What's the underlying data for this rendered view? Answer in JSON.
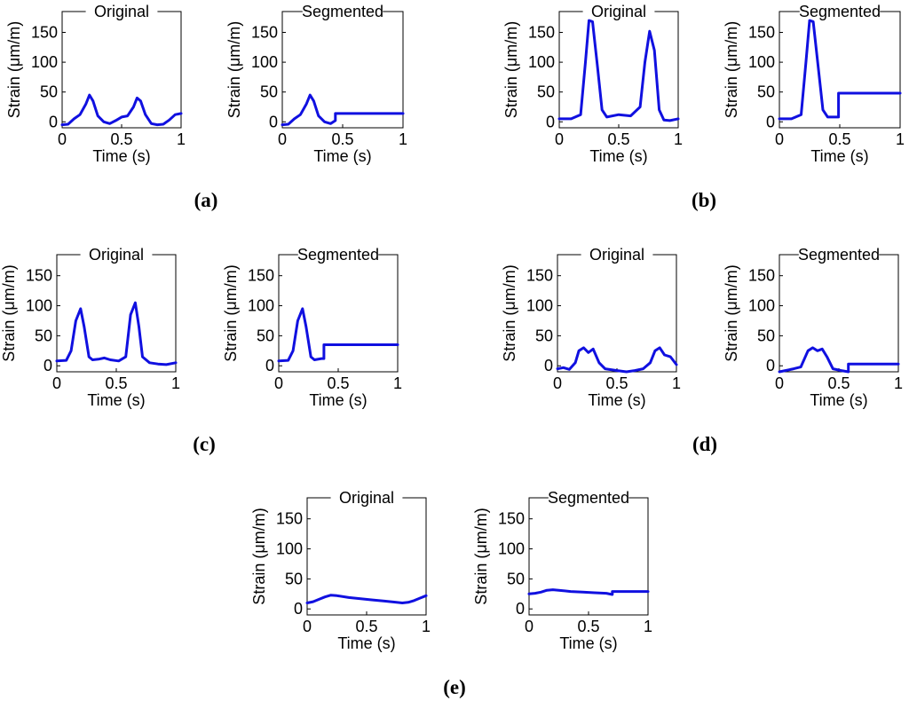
{
  "figure": {
    "panel_labels": [
      "(a)",
      "(b)",
      "(c)",
      "(d)",
      "(e)"
    ]
  },
  "colors": {
    "line": "#1010e0",
    "axis": "#000000"
  },
  "chart_data": [
    {
      "id": "a-original",
      "panel": "(a)",
      "type": "line",
      "title": "Original",
      "xlabel": "Time (s)",
      "ylabel": "Strain (μm/m)",
      "xlim": [
        0,
        1
      ],
      "ylim": [
        -10,
        185
      ],
      "xticks": [
        0,
        0.5,
        1
      ],
      "xtick_labels": [
        "0",
        "0.5",
        "1"
      ],
      "yticks": [
        0,
        50,
        100,
        150
      ],
      "ytick_labels": [
        "0",
        "50",
        "100",
        "150"
      ],
      "x": [
        0,
        0.05,
        0.1,
        0.15,
        0.2,
        0.23,
        0.26,
        0.3,
        0.35,
        0.4,
        0.45,
        0.5,
        0.55,
        0.6,
        0.63,
        0.66,
        0.7,
        0.75,
        0.8,
        0.85,
        0.9,
        0.95,
        1.0
      ],
      "y": [
        -5,
        -4,
        5,
        12,
        30,
        45,
        35,
        10,
        0,
        -3,
        2,
        8,
        10,
        25,
        40,
        35,
        12,
        -3,
        -5,
        -4,
        3,
        12,
        14
      ]
    },
    {
      "id": "a-segmented",
      "panel": "(a)",
      "type": "line",
      "title": "Segmented",
      "xlabel": "Time (s)",
      "ylabel": "Strain (μm/m)",
      "xlim": [
        0,
        1
      ],
      "ylim": [
        -10,
        185
      ],
      "xticks": [
        0,
        0.5,
        1
      ],
      "xtick_labels": [
        "0",
        "0.5",
        "1"
      ],
      "yticks": [
        0,
        50,
        100,
        150
      ],
      "ytick_labels": [
        "0",
        "50",
        "100",
        "150"
      ],
      "x": [
        0,
        0.05,
        0.1,
        0.15,
        0.2,
        0.23,
        0.26,
        0.3,
        0.35,
        0.4,
        0.44,
        0.44,
        0.6,
        0.8,
        1.0
      ],
      "y": [
        -5,
        -4,
        5,
        12,
        30,
        45,
        35,
        10,
        0,
        -3,
        2,
        14,
        14,
        14,
        14
      ]
    },
    {
      "id": "b-original",
      "panel": "(b)",
      "type": "line",
      "title": "Original",
      "xlabel": "Time (s)",
      "ylabel": "Strain (μm/m)",
      "xlim": [
        0,
        1
      ],
      "ylim": [
        -10,
        185
      ],
      "xticks": [
        0,
        0.5,
        1
      ],
      "xtick_labels": [
        "0",
        "0.5",
        "1"
      ],
      "yticks": [
        0,
        50,
        100,
        150
      ],
      "ytick_labels": [
        "0",
        "50",
        "100",
        "150"
      ],
      "x": [
        0,
        0.1,
        0.18,
        0.22,
        0.25,
        0.28,
        0.32,
        0.36,
        0.4,
        0.5,
        0.6,
        0.68,
        0.72,
        0.76,
        0.8,
        0.84,
        0.88,
        0.93,
        1.0
      ],
      "y": [
        5,
        5,
        12,
        100,
        170,
        168,
        95,
        20,
        8,
        12,
        10,
        25,
        100,
        152,
        120,
        20,
        3,
        2,
        5
      ]
    },
    {
      "id": "b-segmented",
      "panel": "(b)",
      "type": "line",
      "title": "Segmented",
      "xlabel": "Time (s)",
      "ylabel": "Strain (μm/m)",
      "xlim": [
        0,
        1
      ],
      "ylim": [
        -10,
        185
      ],
      "xticks": [
        0,
        0.5,
        1
      ],
      "xtick_labels": [
        "0",
        "0.5",
        "1"
      ],
      "yticks": [
        0,
        50,
        100,
        150
      ],
      "ytick_labels": [
        "0",
        "50",
        "100",
        "150"
      ],
      "x": [
        0,
        0.1,
        0.18,
        0.22,
        0.25,
        0.28,
        0.32,
        0.36,
        0.4,
        0.47,
        0.49,
        0.49,
        0.7,
        1.0
      ],
      "y": [
        5,
        5,
        12,
        100,
        170,
        168,
        95,
        20,
        8,
        8,
        8,
        48,
        48,
        48
      ]
    },
    {
      "id": "c-original",
      "panel": "(c)",
      "type": "line",
      "title": "Original",
      "xlabel": "Time (s)",
      "ylabel": "Strain (μm/m)",
      "xlim": [
        0,
        1
      ],
      "ylim": [
        -10,
        185
      ],
      "xticks": [
        0,
        0.5,
        1
      ],
      "xtick_labels": [
        "0",
        "0.5",
        "1"
      ],
      "yticks": [
        0,
        50,
        100,
        150
      ],
      "ytick_labels": [
        "0",
        "50",
        "100",
        "150"
      ],
      "x": [
        0,
        0.08,
        0.12,
        0.16,
        0.2,
        0.23,
        0.27,
        0.3,
        0.35,
        0.4,
        0.45,
        0.52,
        0.58,
        0.62,
        0.66,
        0.69,
        0.72,
        0.78,
        0.85,
        0.92,
        1.0
      ],
      "y": [
        8,
        9,
        25,
        75,
        95,
        65,
        15,
        10,
        11,
        13,
        10,
        8,
        15,
        85,
        105,
        65,
        15,
        5,
        3,
        2,
        5
      ]
    },
    {
      "id": "c-segmented",
      "panel": "(c)",
      "type": "line",
      "title": "Segmented",
      "xlabel": "Time (s)",
      "ylabel": "Strain (μm/m)",
      "xlim": [
        0,
        1
      ],
      "ylim": [
        -10,
        185
      ],
      "xticks": [
        0,
        0.5,
        1
      ],
      "xtick_labels": [
        "0",
        "0.5",
        "1"
      ],
      "yticks": [
        0,
        50,
        100,
        150
      ],
      "ytick_labels": [
        "0",
        "50",
        "100",
        "150"
      ],
      "x": [
        0,
        0.08,
        0.12,
        0.16,
        0.2,
        0.23,
        0.27,
        0.3,
        0.36,
        0.38,
        0.38,
        0.6,
        0.8,
        1.0
      ],
      "y": [
        8,
        9,
        25,
        75,
        95,
        65,
        15,
        10,
        12,
        12,
        35,
        35,
        35,
        35
      ]
    },
    {
      "id": "d-original",
      "panel": "(d)",
      "type": "line",
      "title": "Original",
      "xlabel": "Time (s)",
      "ylabel": "Strain (μm/m)",
      "xlim": [
        0,
        1
      ],
      "ylim": [
        -10,
        185
      ],
      "xticks": [
        0,
        0.5,
        1
      ],
      "xtick_labels": [
        "0",
        "0.5",
        "1"
      ],
      "yticks": [
        0,
        50,
        100,
        150
      ],
      "ytick_labels": [
        "0",
        "50",
        "100",
        "150"
      ],
      "x": [
        0,
        0.05,
        0.1,
        0.15,
        0.18,
        0.22,
        0.26,
        0.3,
        0.35,
        0.4,
        0.5,
        0.58,
        0.65,
        0.72,
        0.78,
        0.82,
        0.86,
        0.9,
        0.95,
        1.0
      ],
      "y": [
        -5,
        -3,
        -6,
        5,
        25,
        30,
        22,
        28,
        5,
        -5,
        -8,
        -10,
        -8,
        -5,
        5,
        25,
        30,
        18,
        15,
        2
      ]
    },
    {
      "id": "d-segmented",
      "panel": "(d)",
      "type": "line",
      "title": "Segmented",
      "xlabel": "Time (s)",
      "ylabel": "Strain (μm/m)",
      "xlim": [
        0,
        1
      ],
      "ylim": [
        -10,
        185
      ],
      "xticks": [
        0,
        0.5,
        1
      ],
      "xtick_labels": [
        "0",
        "0.5",
        "1"
      ],
      "yticks": [
        0,
        50,
        100,
        150
      ],
      "ytick_labels": [
        "0",
        "50",
        "100",
        "150"
      ],
      "x": [
        0,
        0.05,
        0.12,
        0.18,
        0.24,
        0.28,
        0.32,
        0.36,
        0.4,
        0.45,
        0.52,
        0.58,
        0.58,
        0.8,
        1.0
      ],
      "y": [
        -10,
        -8,
        -5,
        -2,
        25,
        30,
        25,
        28,
        15,
        -5,
        -8,
        -10,
        3,
        3,
        3
      ]
    },
    {
      "id": "e-original",
      "panel": "(e)",
      "type": "line",
      "title": "Original",
      "xlabel": "Time (s)",
      "ylabel": "Strain (μm/m)",
      "xlim": [
        0,
        1
      ],
      "ylim": [
        -10,
        185
      ],
      "xticks": [
        0,
        0.5,
        1
      ],
      "xtick_labels": [
        "0",
        "0.5",
        "1"
      ],
      "yticks": [
        0,
        50,
        100,
        150
      ],
      "ytick_labels": [
        "0",
        "50",
        "100",
        "150"
      ],
      "x": [
        0,
        0.05,
        0.1,
        0.15,
        0.2,
        0.25,
        0.35,
        0.45,
        0.55,
        0.65,
        0.75,
        0.8,
        0.85,
        0.9,
        0.95,
        1.0
      ],
      "y": [
        10,
        12,
        16,
        20,
        23,
        22,
        19,
        17,
        15,
        13,
        11,
        10,
        11,
        14,
        18,
        22
      ]
    },
    {
      "id": "e-segmented",
      "panel": "(e)",
      "type": "line",
      "title": "Segmented",
      "xlabel": "Time (s)",
      "ylabel": "Strain (μm/m)",
      "xlim": [
        0,
        1
      ],
      "ylim": [
        -10,
        185
      ],
      "xticks": [
        0,
        0.5,
        1
      ],
      "xtick_labels": [
        "0",
        "0.5",
        "1"
      ],
      "yticks": [
        0,
        50,
        100,
        150
      ],
      "ytick_labels": [
        "0",
        "50",
        "100",
        "150"
      ],
      "x": [
        0,
        0.05,
        0.1,
        0.15,
        0.2,
        0.25,
        0.35,
        0.45,
        0.55,
        0.65,
        0.7,
        0.7,
        0.85,
        1.0
      ],
      "y": [
        25,
        26,
        28,
        31,
        32,
        31,
        29,
        28,
        27,
        26,
        24,
        29,
        29,
        29
      ]
    }
  ]
}
